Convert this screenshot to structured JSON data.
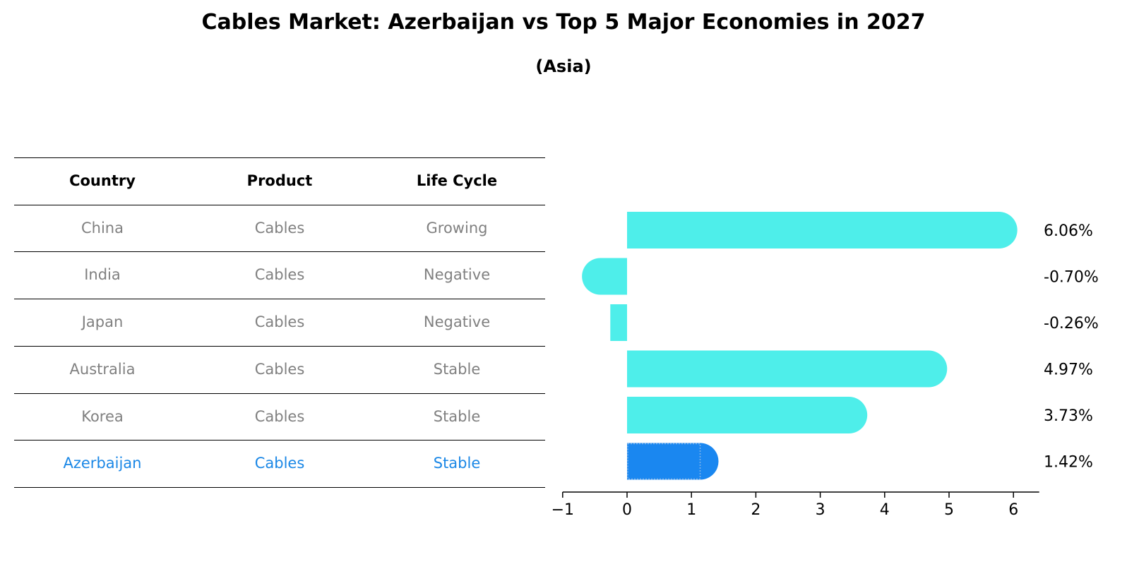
{
  "title": "Cables Market: Azerbaijan vs Top 5 Major Economies in 2027",
  "subtitle": "(Asia)",
  "table": {
    "headers": [
      "Country",
      "Product",
      "Life Cycle"
    ],
    "rows": [
      [
        "China",
        "Cables",
        "Growing"
      ],
      [
        "India",
        "Cables",
        "Negative"
      ],
      [
        "Japan",
        "Cables",
        "Negative"
      ],
      [
        "Australia",
        "Cables",
        "Stable"
      ],
      [
        "Korea",
        "Cables",
        "Stable"
      ],
      [
        "Azerbaijan",
        "Cables",
        "Stable"
      ]
    ],
    "highlight_row": 5
  },
  "colors": {
    "bar": "#4eeeea",
    "highlight": "#1a87f0",
    "row_text": "#808080",
    "highlight_text": "#1a87e6"
  },
  "chart_data": {
    "type": "bar",
    "orientation": "horizontal",
    "categories": [
      "China",
      "India",
      "Japan",
      "Australia",
      "Korea",
      "Azerbaijan"
    ],
    "values": [
      6.06,
      -0.7,
      -0.26,
      4.97,
      3.73,
      1.42
    ],
    "value_labels": [
      "6.06%",
      "-0.70%",
      "-0.26%",
      "4.97%",
      "3.73%",
      "1.42%"
    ],
    "xlim": [
      -1,
      6.4
    ],
    "xticks": [
      -1,
      0,
      1,
      2,
      3,
      4,
      5,
      6
    ],
    "xtick_labels": [
      "−1",
      "0",
      "1",
      "2",
      "3",
      "4",
      "5",
      "6"
    ],
    "grid": false
  }
}
